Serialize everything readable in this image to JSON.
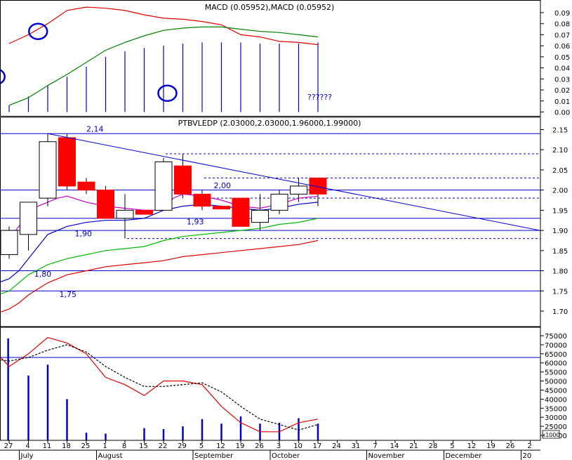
{
  "chart_data": [
    {
      "type": "line",
      "title": "MACD (0.05952),MACD (0.05952)",
      "ylim": [
        0,
        0.095
      ],
      "y_ticks": [
        "0.09",
        "0.08",
        "0.07",
        "0.06",
        "0.05",
        "0.04",
        "0.03",
        "0.02",
        "0.01",
        "0.00"
      ],
      "annotation": "??????",
      "series": [
        {
          "color": "#e00000",
          "points": [
            [
              0,
              0.062
            ],
            [
              1,
              0.07
            ],
            [
              2,
              0.08
            ],
            [
              3,
              0.092
            ],
            [
              4,
              0.095
            ],
            [
              5,
              0.094
            ],
            [
              6,
              0.092
            ],
            [
              7,
              0.088
            ],
            [
              8,
              0.085
            ],
            [
              9,
              0.084
            ],
            [
              10,
              0.082
            ],
            [
              11,
              0.079
            ],
            [
              12,
              0.07
            ],
            [
              13,
              0.068
            ],
            [
              14,
              0.064
            ],
            [
              15,
              0.063
            ],
            [
              16,
              0.061
            ]
          ]
        },
        {
          "color": "#008000",
          "points": [
            [
              0,
              0.006
            ],
            [
              1,
              0.013
            ],
            [
              2,
              0.024
            ],
            [
              3,
              0.034
            ],
            [
              4,
              0.045
            ],
            [
              5,
              0.056
            ],
            [
              6,
              0.063
            ],
            [
              7,
              0.069
            ],
            [
              8,
              0.074
            ],
            [
              9,
              0.076
            ],
            [
              10,
              0.077
            ],
            [
              11,
              0.077
            ],
            [
              12,
              0.075
            ],
            [
              13,
              0.073
            ],
            [
              14,
              0.072
            ],
            [
              15,
              0.07
            ],
            [
              16,
              0.068
            ]
          ]
        }
      ],
      "histogram": {
        "color": "#0000cc",
        "points": [
          [
            0,
            0.006
          ],
          [
            1,
            0.014
          ],
          [
            2,
            0.024
          ],
          [
            3,
            0.032
          ],
          [
            4,
            0.041
          ],
          [
            5,
            0.05
          ],
          [
            6,
            0.055
          ],
          [
            7,
            0.058
          ],
          [
            8,
            0.06
          ],
          [
            9,
            0.062
          ],
          [
            10,
            0.063
          ],
          [
            11,
            0.063
          ],
          [
            12,
            0.063
          ],
          [
            13,
            0.062
          ],
          [
            14,
            0.062
          ],
          [
            15,
            0.062
          ],
          [
            16,
            0.063
          ]
        ]
      },
      "circles": [
        [
          -0.7,
          0.032
        ],
        [
          1.5,
          0.073
        ],
        [
          8.2,
          0.017
        ]
      ]
    },
    {
      "type": "candlestick",
      "title": "PTBVLEDP (2.03000,2.03000,1.96000,1.99000)",
      "ylim": [
        1.675,
        2.165
      ],
      "y_ticks": [
        "2.15",
        "2.10",
        "2.05",
        "2.00",
        "1.95",
        "1.90",
        "1.85",
        "1.80",
        "1.75",
        "1.70"
      ],
      "candles": [
        {
          "x": 0,
          "o": 1.84,
          "h": 1.91,
          "l": 1.83,
          "c": 1.9,
          "up": true
        },
        {
          "x": 1,
          "o": 1.89,
          "h": 1.97,
          "l": 1.85,
          "c": 1.97,
          "up": true
        },
        {
          "x": 2,
          "o": 1.98,
          "h": 2.14,
          "l": 1.96,
          "c": 2.12,
          "up": true
        },
        {
          "x": 3,
          "o": 2.13,
          "h": 2.14,
          "l": 2.0,
          "c": 2.01,
          "up": false
        },
        {
          "x": 4,
          "o": 2.02,
          "h": 2.03,
          "l": 1.99,
          "c": 2.0,
          "up": false
        },
        {
          "x": 5,
          "o": 2.0,
          "h": 2.01,
          "l": 1.93,
          "c": 1.93,
          "up": false
        },
        {
          "x": 6,
          "o": 1.93,
          "h": 1.99,
          "l": 1.88,
          "c": 1.95,
          "up": true
        },
        {
          "x": 7,
          "o": 1.95,
          "h": 1.95,
          "l": 1.94,
          "c": 1.94,
          "up": false
        },
        {
          "x": 8,
          "o": 1.95,
          "h": 2.08,
          "l": 1.95,
          "c": 2.07,
          "up": true
        },
        {
          "x": 9,
          "o": 2.06,
          "h": 2.09,
          "l": 1.98,
          "c": 1.99,
          "up": false
        },
        {
          "x": 10,
          "o": 1.99,
          "h": 2.0,
          "l": 1.95,
          "c": 1.96,
          "up": false
        },
        {
          "x": 11,
          "o": 1.96,
          "h": 1.96,
          "l": 1.96,
          "c": 1.96,
          "up": false
        },
        {
          "x": 12,
          "o": 1.98,
          "h": 1.98,
          "l": 1.91,
          "c": 1.91,
          "up": false
        },
        {
          "x": 13,
          "o": 1.92,
          "h": 1.99,
          "l": 1.9,
          "c": 1.95,
          "up": true
        },
        {
          "x": 14,
          "o": 1.95,
          "h": 2.0,
          "l": 1.94,
          "c": 1.99,
          "up": true
        },
        {
          "x": 15,
          "o": 1.99,
          "h": 2.03,
          "l": 1.97,
          "c": 2.01,
          "up": true
        },
        {
          "x": 16,
          "o": 2.03,
          "h": 2.03,
          "l": 1.96,
          "c": 1.99,
          "up": false
        }
      ],
      "ma_lines": [
        {
          "color": "#cc00cc",
          "points": [
            [
              -0.6,
              1.86
            ],
            [
              0,
              1.88
            ],
            [
              0.5,
              1.91
            ],
            [
              1,
              1.94
            ],
            [
              1.5,
              1.96
            ],
            [
              2,
              1.97
            ],
            [
              2.5,
              1.98
            ],
            [
              3,
              1.985
            ],
            [
              4,
              1.97
            ],
            [
              5,
              1.96
            ],
            [
              6,
              1.955
            ],
            [
              7,
              1.95
            ],
            [
              8,
              1.95
            ],
            [
              8.5,
              1.98
            ],
            [
              9,
              1.99
            ],
            [
              10,
              1.985
            ],
            [
              11,
              1.975
            ],
            [
              12,
              1.96
            ],
            [
              13,
              1.955
            ],
            [
              14,
              1.965
            ],
            [
              15,
              1.98
            ],
            [
              16,
              1.985
            ]
          ]
        },
        {
          "color": "#0000cc",
          "points": [
            [
              -0.6,
              1.77
            ],
            [
              0,
              1.78
            ],
            [
              0.5,
              1.8
            ],
            [
              1,
              1.83
            ],
            [
              1.5,
              1.86
            ],
            [
              2,
              1.89
            ],
            [
              3,
              1.91
            ],
            [
              4,
              1.92
            ],
            [
              5,
              1.925
            ],
            [
              6,
              1.925
            ],
            [
              7,
              1.93
            ],
            [
              8,
              1.95
            ],
            [
              9,
              1.96
            ],
            [
              10,
              1.965
            ],
            [
              11,
              1.96
            ],
            [
              12,
              1.955
            ],
            [
              13,
              1.95
            ],
            [
              14,
              1.955
            ],
            [
              15,
              1.965
            ],
            [
              16,
              1.97
            ]
          ]
        },
        {
          "color": "#00bb00",
          "points": [
            [
              -0.6,
              1.74
            ],
            [
              0,
              1.75
            ],
            [
              0.5,
              1.77
            ],
            [
              1,
              1.79
            ],
            [
              2,
              1.815
            ],
            [
              3,
              1.83
            ],
            [
              4,
              1.84
            ],
            [
              5,
              1.85
            ],
            [
              6,
              1.855
            ],
            [
              7,
              1.86
            ],
            [
              8,
              1.875
            ],
            [
              9,
              1.885
            ],
            [
              10,
              1.89
            ],
            [
              11,
              1.895
            ],
            [
              12,
              1.9
            ],
            [
              13,
              1.905
            ],
            [
              14,
              1.915
            ],
            [
              15,
              1.92
            ],
            [
              16,
              1.93
            ]
          ]
        },
        {
          "color": "#e00000",
          "points": [
            [
              -0.6,
              1.695
            ],
            [
              0,
              1.705
            ],
            [
              0.5,
              1.72
            ],
            [
              1,
              1.74
            ],
            [
              2,
              1.77
            ],
            [
              3,
              1.79
            ],
            [
              4,
              1.8
            ],
            [
              5,
              1.81
            ],
            [
              6,
              1.815
            ],
            [
              7,
              1.82
            ],
            [
              8,
              1.825
            ],
            [
              9,
              1.835
            ],
            [
              10,
              1.84
            ],
            [
              11,
              1.845
            ],
            [
              12,
              1.85
            ],
            [
              13,
              1.855
            ],
            [
              14,
              1.86
            ],
            [
              15,
              1.865
            ],
            [
              16,
              1.875
            ]
          ]
        }
      ],
      "hlines": [
        {
          "y": 2.14,
          "dash": false
        },
        {
          "y": 2.09,
          "dash": true,
          "from": 8
        },
        {
          "y": 2.03,
          "dash": true,
          "from": 10
        },
        {
          "y": 2.0,
          "dash": false
        },
        {
          "y": 1.98,
          "dash": true,
          "from": 10
        },
        {
          "y": 1.93,
          "dash": false
        },
        {
          "y": 1.9,
          "dash": false
        },
        {
          "y": 1.88,
          "dash": true,
          "from": 6
        },
        {
          "y": 1.8,
          "dash": false
        },
        {
          "y": 1.75,
          "dash": false
        }
      ],
      "trendline": [
        [
          2,
          2.14
        ],
        [
          27.5,
          1.9
        ]
      ],
      "labels": [
        {
          "text": "2,14",
          "x": 4,
          "y": 2.145
        },
        {
          "text": "2,00",
          "x": 10.6,
          "y": 2.005
        },
        {
          "text": "1,93",
          "x": 9.2,
          "y": 1.915
        },
        {
          "text": "1,90",
          "x": 3.4,
          "y": 1.885
        },
        {
          "text": "1,80",
          "x": 1.3,
          "y": 1.785
        },
        {
          "text": "1,75",
          "x": 2.6,
          "y": 1.735
        }
      ]
    },
    {
      "type": "bar",
      "ylim": [
        20000,
        77000
      ],
      "y_ticks": [
        "75000",
        "70000",
        "65000",
        "60000",
        "55000",
        "50000",
        "45000",
        "40000",
        "35000",
        "30000",
        "25000",
        "20000"
      ],
      "unit_label": "x1000",
      "ref_line": 63000,
      "bars": [
        [
          -0.05,
          73500
        ],
        [
          1,
          53000
        ],
        [
          2,
          59000
        ],
        [
          3,
          40000
        ],
        [
          4,
          21500
        ],
        [
          5,
          21000
        ],
        [
          7,
          24000
        ],
        [
          8,
          23500
        ],
        [
          9,
          25000
        ],
        [
          10,
          29000
        ],
        [
          11,
          26500
        ],
        [
          12,
          30500
        ],
        [
          13,
          26500
        ],
        [
          14,
          27000
        ],
        [
          15,
          29500
        ],
        [
          16,
          26500
        ]
      ],
      "series": [
        {
          "color": "#e00000",
          "dash": false,
          "points": [
            [
              -0.6,
              65000
            ],
            [
              0,
              58000
            ],
            [
              1,
              65000
            ],
            [
              2,
              74000
            ],
            [
              3,
              71000
            ],
            [
              4,
              65000
            ],
            [
              5,
              52000
            ],
            [
              6,
              48000
            ],
            [
              7,
              42000
            ],
            [
              8,
              50000
            ],
            [
              9,
              50000
            ],
            [
              10,
              48000
            ],
            [
              11,
              36000
            ],
            [
              12,
              27000
            ],
            [
              13,
              22000
            ],
            [
              14,
              22000
            ],
            [
              15,
              27000
            ],
            [
              16,
              29000
            ]
          ]
        },
        {
          "color": "#000000",
          "dash": true,
          "points": [
            [
              -0.6,
              62000
            ],
            [
              0,
              61000
            ],
            [
              1,
              63000
            ],
            [
              2,
              67000
            ],
            [
              3,
              70000
            ],
            [
              4,
              66000
            ],
            [
              5,
              58000
            ],
            [
              6,
              52000
            ],
            [
              7,
              47000
            ],
            [
              8,
              47000
            ],
            [
              9,
              48000
            ],
            [
              10,
              49000
            ],
            [
              11,
              44000
            ],
            [
              12,
              36000
            ],
            [
              13,
              29000
            ],
            [
              14,
              26000
            ],
            [
              15,
              23000
            ],
            [
              16,
              26000
            ]
          ]
        }
      ]
    }
  ],
  "x_axis": {
    "ticks": [
      "27",
      "4",
      "11",
      "18",
      "25",
      "1",
      "8",
      "15",
      "22",
      "29",
      "5",
      "12",
      "19",
      "26",
      "3",
      "10",
      "17",
      "24",
      "31",
      "7",
      "14",
      "21",
      "28",
      "5",
      "12",
      "19",
      "26",
      "2"
    ],
    "months": [
      {
        "label": "July",
        "tick": 1
      },
      {
        "label": "August",
        "tick": 5
      },
      {
        "label": "September",
        "tick": 10
      },
      {
        "label": "October",
        "tick": 14
      },
      {
        "label": "November",
        "tick": 19
      },
      {
        "label": "December",
        "tick": 23
      },
      {
        "label": "20",
        "tick": 27
      }
    ]
  }
}
